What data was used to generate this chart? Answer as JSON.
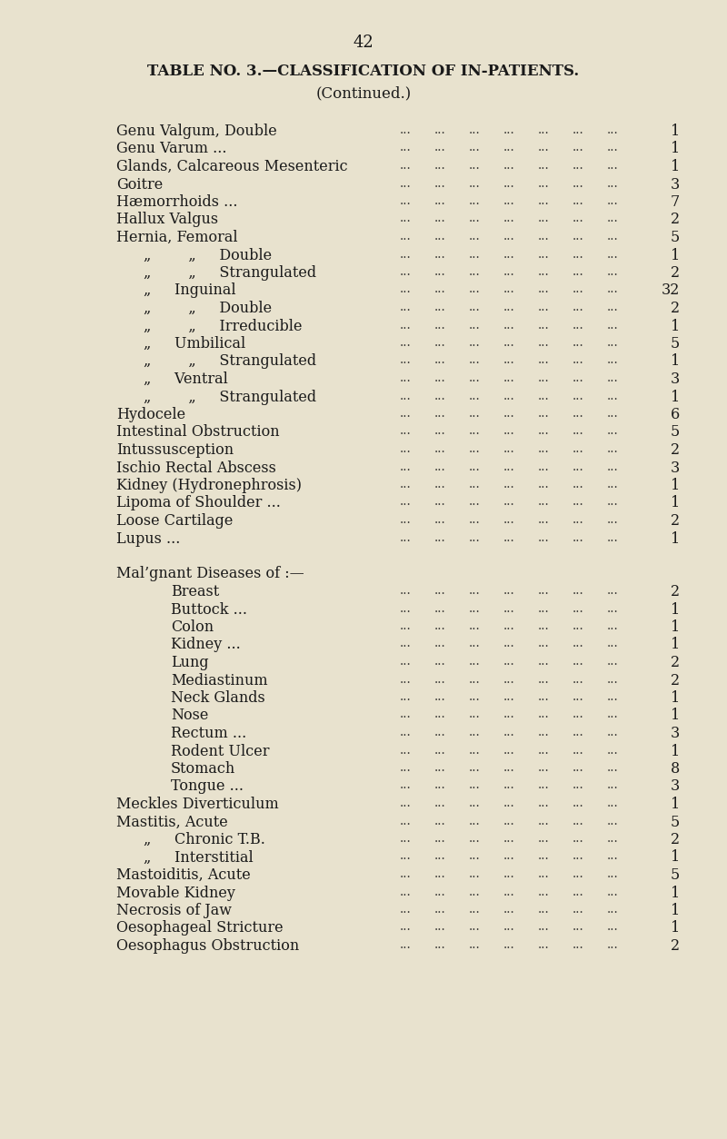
{
  "page_number": "42",
  "title_line1": "TABLE NO. 3.—CLASSIFICATION OF IN-PATIENTS.",
  "title_line2": "(Continued.)",
  "bg_color": "#e8e2ce",
  "text_color": "#1a1a1a",
  "rows": [
    {
      "label": "Genu Valgum, Double",
      "indent": 0,
      "dots": true,
      "value": "1"
    },
    {
      "label": "Genu Varum ...",
      "indent": 0,
      "dots": true,
      "value": "1"
    },
    {
      "label": "Glands, Calcareous Mesenteric",
      "indent": 0,
      "dots": true,
      "value": "1"
    },
    {
      "label": "Goitre",
      "indent": 0,
      "dots": true,
      "value": "3"
    },
    {
      "label": "Hæmorrhoids ...",
      "indent": 0,
      "dots": true,
      "value": "7"
    },
    {
      "label": "Hallux Valgus",
      "indent": 0,
      "dots": true,
      "value": "2"
    },
    {
      "label": "Hernia, Femoral",
      "indent": 0,
      "dots": true,
      "value": "5"
    },
    {
      "label": "„        „     Double",
      "indent": 1,
      "dots": true,
      "value": "1"
    },
    {
      "label": "„        „     Strangulated",
      "indent": 1,
      "dots": true,
      "value": "2"
    },
    {
      "label": "„     Inguinal",
      "indent": 1,
      "dots": true,
      "value": "32"
    },
    {
      "label": "„        „     Double",
      "indent": 1,
      "dots": true,
      "value": "2"
    },
    {
      "label": "„        „     Irreducible",
      "indent": 1,
      "dots": true,
      "value": "1"
    },
    {
      "label": "„     Umbilical",
      "indent": 1,
      "dots": true,
      "value": "5"
    },
    {
      "label": "„        „     Strangulated",
      "indent": 1,
      "dots": true,
      "value": "1"
    },
    {
      "label": "„     Ventral",
      "indent": 1,
      "dots": true,
      "value": "3"
    },
    {
      "label": "„        „     Strangulated",
      "indent": 1,
      "dots": true,
      "value": "1"
    },
    {
      "label": "Hydocele",
      "indent": 0,
      "dots": true,
      "value": "6"
    },
    {
      "label": "Intestinal Obstruction",
      "indent": 0,
      "dots": true,
      "value": "5"
    },
    {
      "label": "Intussusception",
      "indent": 0,
      "dots": true,
      "value": "2"
    },
    {
      "label": "Ischio Rectal Abscess",
      "indent": 0,
      "dots": true,
      "value": "3"
    },
    {
      "label": "Kidney (Hydronephrosis)",
      "indent": 0,
      "dots": true,
      "value": "1"
    },
    {
      "label": "Lipoma of Shoulder ...",
      "indent": 0,
      "dots": true,
      "value": "1"
    },
    {
      "label": "Loose Cartilage",
      "indent": 0,
      "dots": true,
      "value": "2"
    },
    {
      "label": "Lupus ...",
      "indent": 0,
      "dots": true,
      "value": "1"
    },
    {
      "label": "",
      "indent": 0,
      "dots": false,
      "value": ""
    },
    {
      "label": "Mal’gnant Diseases of :—",
      "indent": 0,
      "dots": false,
      "value": ""
    },
    {
      "label": "Breast",
      "indent": 2,
      "dots": true,
      "value": "2"
    },
    {
      "label": "Buttock ...",
      "indent": 2,
      "dots": true,
      "value": "1"
    },
    {
      "label": "Colon",
      "indent": 2,
      "dots": true,
      "value": "1"
    },
    {
      "label": "Kidney ...",
      "indent": 2,
      "dots": true,
      "value": "1"
    },
    {
      "label": "Lung",
      "indent": 2,
      "dots": true,
      "value": "2"
    },
    {
      "label": "Mediastinum",
      "indent": 2,
      "dots": true,
      "value": "2"
    },
    {
      "label": "Neck Glands",
      "indent": 2,
      "dots": true,
      "value": "1"
    },
    {
      "label": "Nose",
      "indent": 2,
      "dots": true,
      "value": "1"
    },
    {
      "label": "Rectum ...",
      "indent": 2,
      "dots": true,
      "value": "3"
    },
    {
      "label": "Rodent Ulcer",
      "indent": 2,
      "dots": true,
      "value": "1"
    },
    {
      "label": "Stomach",
      "indent": 2,
      "dots": true,
      "value": "8"
    },
    {
      "label": "Tongue ...",
      "indent": 2,
      "dots": true,
      "value": "3"
    },
    {
      "label": "Meckles Diverticulum",
      "indent": 0,
      "dots": true,
      "value": "1"
    },
    {
      "label": "Mastitis, Acute",
      "indent": 0,
      "dots": true,
      "value": "5"
    },
    {
      "label": "„     Chronic T.B.",
      "indent": 1,
      "dots": true,
      "value": "2"
    },
    {
      "label": "„     Interstitial",
      "indent": 1,
      "dots": true,
      "value": "1"
    },
    {
      "label": "Mastoiditis, Acute",
      "indent": 0,
      "dots": true,
      "value": "5"
    },
    {
      "label": "Movable Kidney",
      "indent": 0,
      "dots": true,
      "value": "1"
    },
    {
      "label": "Necrosis of Jaw",
      "indent": 0,
      "dots": true,
      "value": "1"
    },
    {
      "label": "Oesophageal Stricture",
      "indent": 0,
      "dots": true,
      "value": "1"
    },
    {
      "label": "Oesophagus Obstruction",
      "indent": 0,
      "dots": true,
      "value": "2"
    }
  ]
}
